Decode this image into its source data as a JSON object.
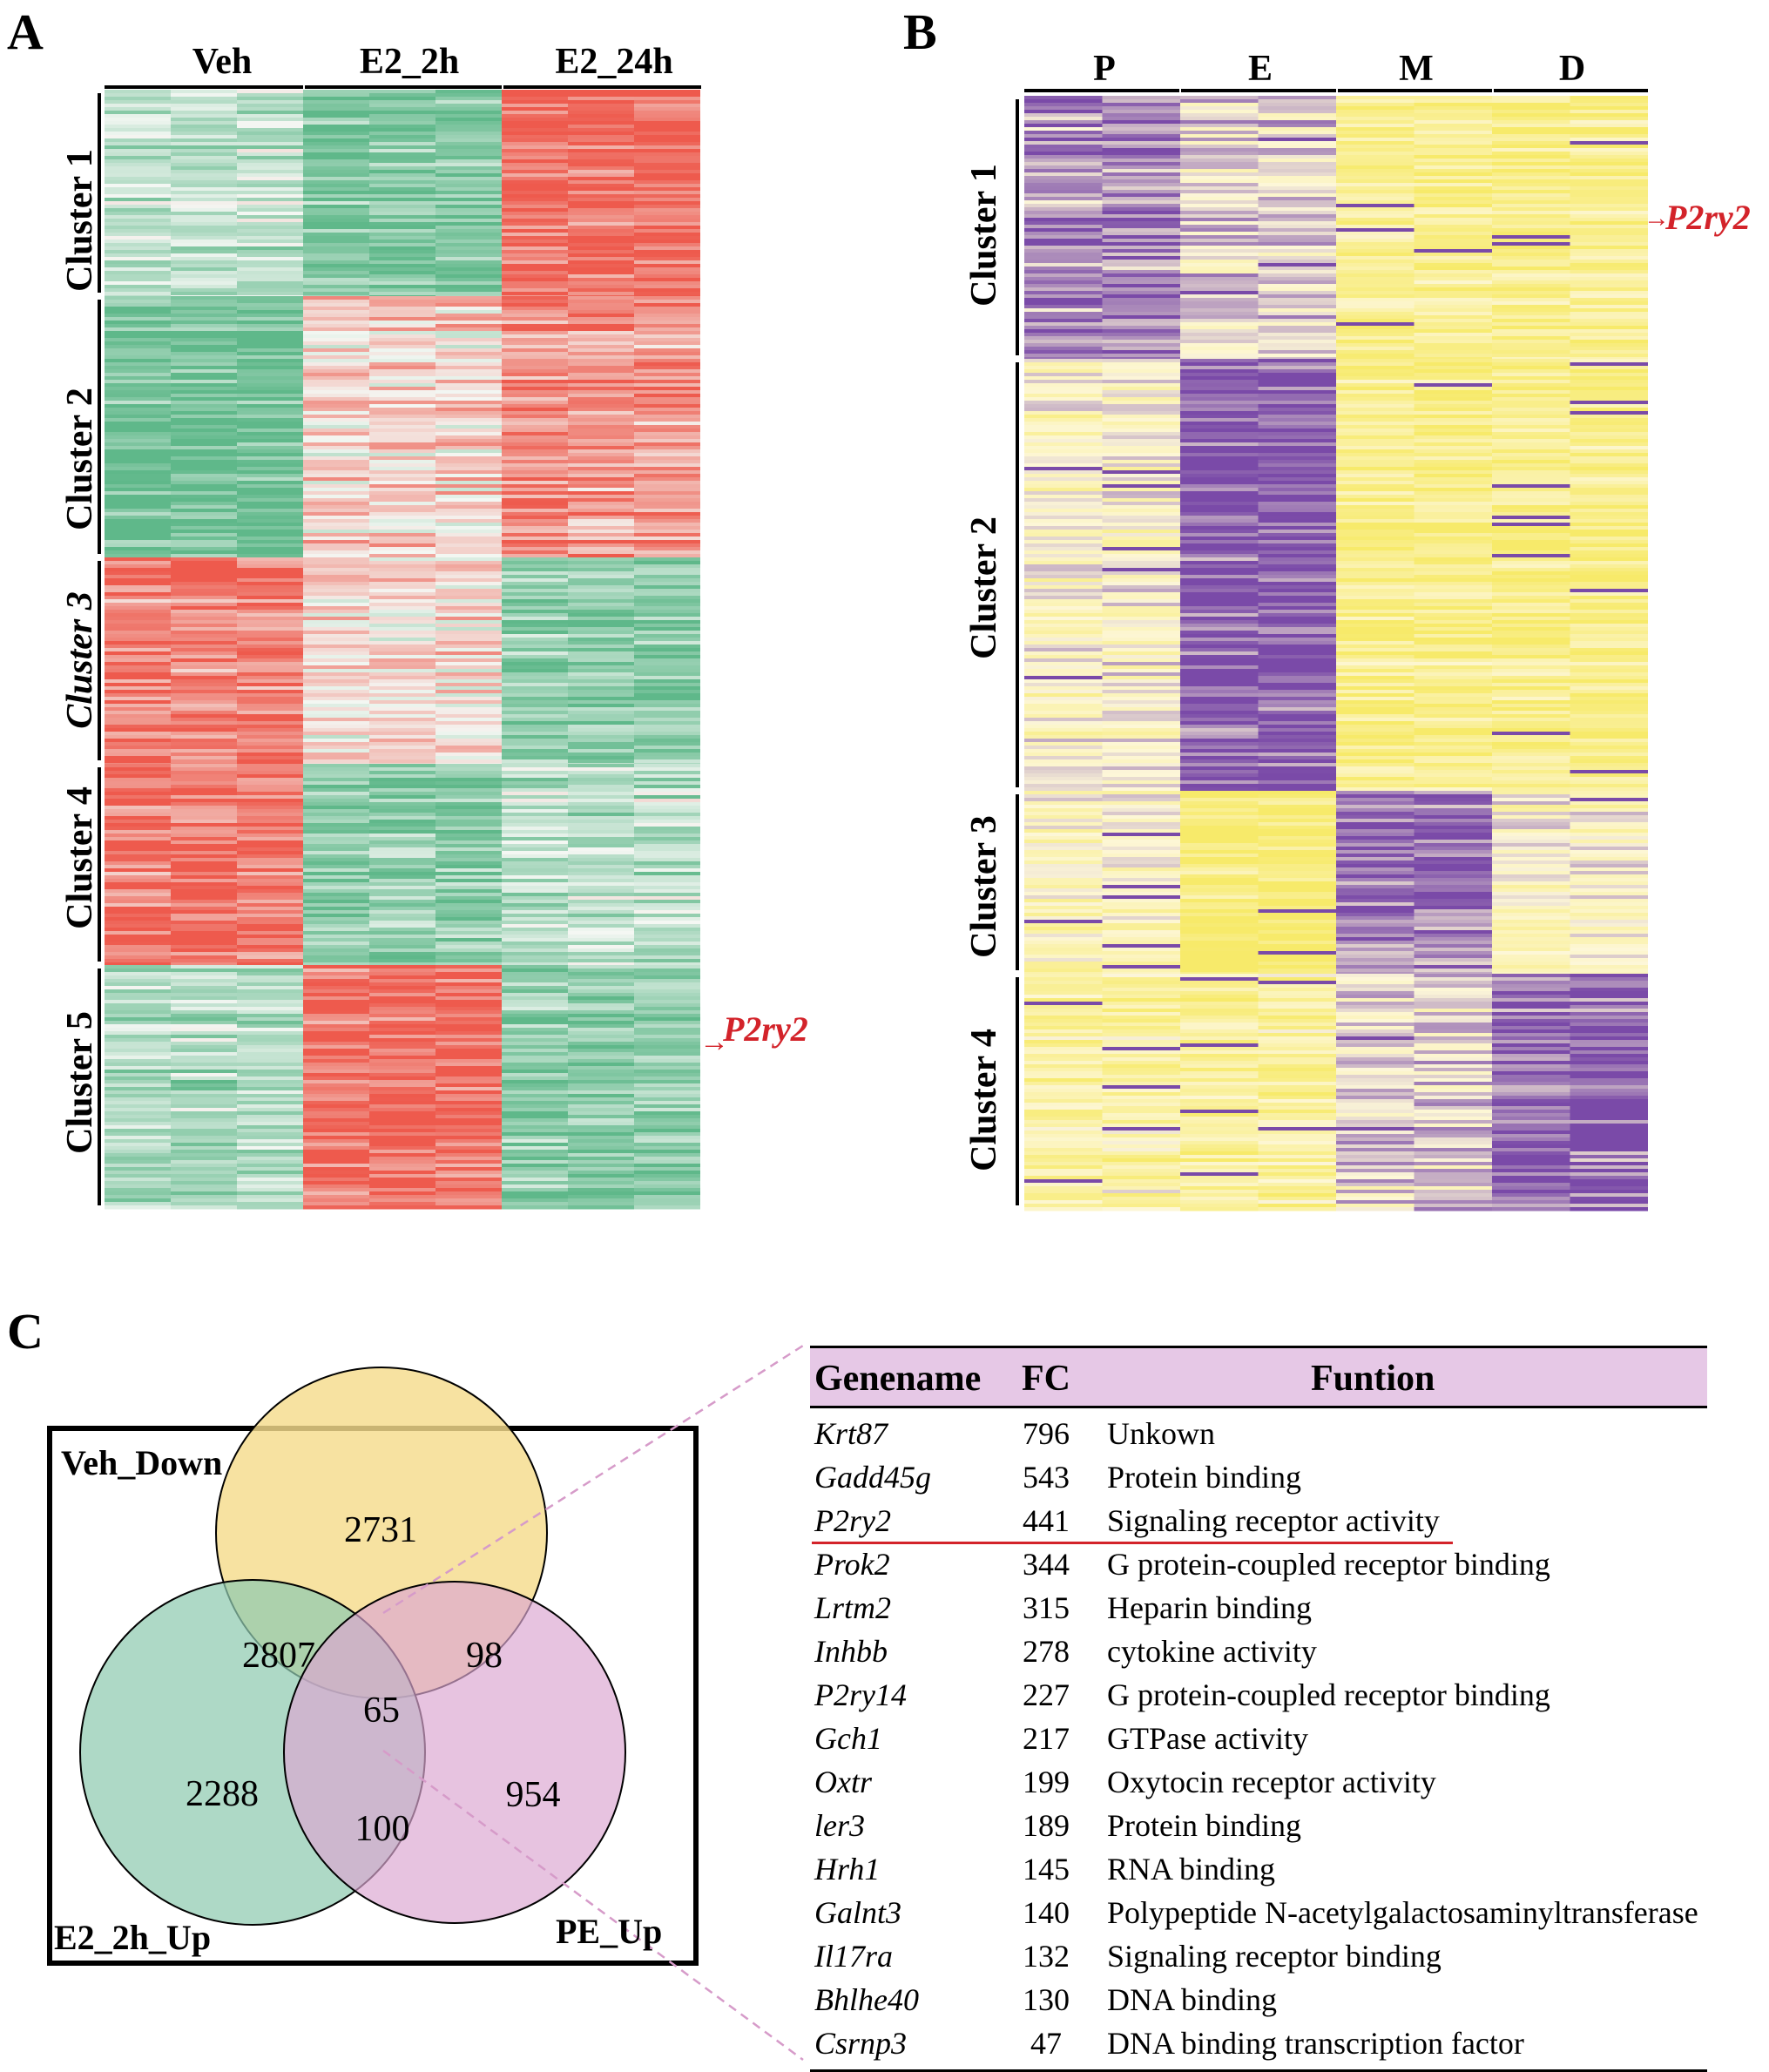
{
  "panel_a": {
    "letter": "A",
    "columns": [
      "Veh",
      "E2_2h",
      "E2_24h"
    ],
    "clusters": [
      {
        "label": "Cluster 1",
        "italic": false
      },
      {
        "label": "Cluster 2",
        "italic": false
      },
      {
        "label": "Cluster 3",
        "italic": true
      },
      {
        "label": "Cluster 4",
        "italic": false
      },
      {
        "label": "Cluster 5",
        "italic": false
      }
    ],
    "callout": "P2ry2",
    "colors": {
      "low": "#5fb88a",
      "mid": "#f4f7f3",
      "high": "#ee5a4d"
    }
  },
  "panel_b": {
    "letter": "B",
    "columns": [
      "P",
      "E",
      "M",
      "D"
    ],
    "clusters": [
      {
        "label": "Cluster 1"
      },
      {
        "label": "Cluster 2"
      },
      {
        "label": "Cluster 3"
      },
      {
        "label": "Cluster 4"
      }
    ],
    "callout": "P2ry2",
    "colors": {
      "low": "#7a4aa8",
      "mid": "#fdf7d8",
      "high": "#f7ea6a"
    }
  },
  "panel_c": {
    "letter": "C",
    "venn": {
      "sets": [
        "Veh_Down",
        "E2_2h_Up",
        "PE_Up"
      ],
      "set_colors": [
        "#f5dc8c",
        "#8fcab0",
        "#dca6d2"
      ],
      "regions": {
        "veh_only": 2731,
        "veh_e2": 2807,
        "veh_pe": 98,
        "all_three": 65,
        "e2_only": 2288,
        "e2_pe": 100,
        "pe_only": 954
      }
    },
    "table": {
      "headers": [
        "Genename",
        "FC",
        "Funtion"
      ],
      "header_bg": "#e6c8e6",
      "rows": [
        {
          "gene": "Krt87",
          "fc": "796",
          "function": "Unkown"
        },
        {
          "gene": "Gadd45g",
          "fc": "543",
          "function": "Protein binding"
        },
        {
          "gene": "P2ry2",
          "fc": "441",
          "function": "Signaling receptor activity",
          "highlight": true
        },
        {
          "gene": "Prok2",
          "fc": "344",
          "function": "G protein-coupled receptor binding"
        },
        {
          "gene": "Lrtm2",
          "fc": "315",
          "function": "Heparin binding"
        },
        {
          "gene": "Inhbb",
          "fc": "278",
          "function": "cytokine activity"
        },
        {
          "gene": "P2ry14",
          "fc": "227",
          "function": "G protein-coupled receptor binding"
        },
        {
          "gene": "Gch1",
          "fc": "217",
          "function": "GTPase activity"
        },
        {
          "gene": "Oxtr",
          "fc": "199",
          "function": "Oxytocin receptor activity"
        },
        {
          "gene": "ler3",
          "fc": "189",
          "function": "Protein binding"
        },
        {
          "gene": "Hrh1",
          "fc": "145",
          "function": "RNA binding"
        },
        {
          "gene": "Galnt3",
          "fc": "140",
          "function": "Polypeptide N-acetylgalactosaminyltransferase"
        },
        {
          "gene": "Il17ra",
          "fc": "132",
          "function": "Signaling receptor binding"
        },
        {
          "gene": "Bhlhe40",
          "fc": "130",
          "function": "DNA binding"
        },
        {
          "gene": "Csrnp3",
          "fc": "47",
          "function": "DNA binding transcription factor"
        }
      ]
    }
  }
}
